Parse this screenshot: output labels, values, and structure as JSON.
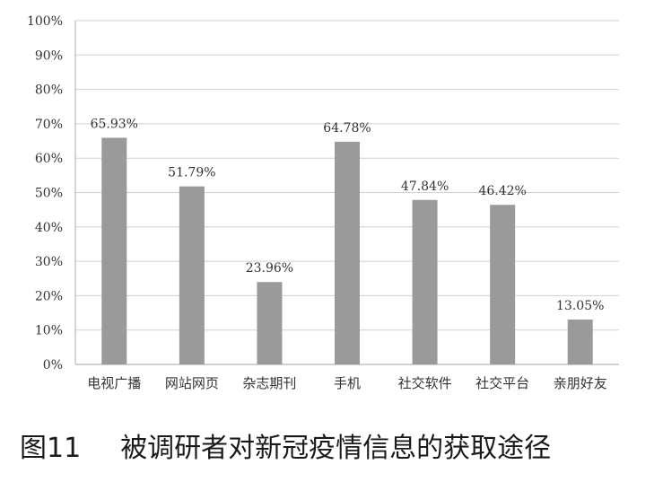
{
  "caption": {
    "figure_number": "图11",
    "text": "被调研者对新冠疫情信息的获取途径"
  },
  "chart_data": {
    "type": "bar",
    "categories": [
      "电视广播",
      "网站网页",
      "杂志期刊",
      "手机",
      "社交软件",
      "社交平台",
      "亲朋好友"
    ],
    "values": [
      65.93,
      51.79,
      23.96,
      64.78,
      47.84,
      46.42,
      13.05
    ],
    "data_labels": [
      "65.93%",
      "51.79%",
      "23.96%",
      "64.78%",
      "47.84%",
      "46.42%",
      "13.05%"
    ],
    "y_ticks": [
      0,
      10,
      20,
      30,
      40,
      50,
      60,
      70,
      80,
      90,
      100
    ],
    "y_tick_labels": [
      "0%",
      "10%",
      "20%",
      "30%",
      "40%",
      "50%",
      "60%",
      "70%",
      "80%",
      "90%",
      "100%"
    ],
    "ylim": [
      0,
      100
    ],
    "grid": true,
    "legend": "none",
    "bar_color": "#9a9a9a"
  }
}
